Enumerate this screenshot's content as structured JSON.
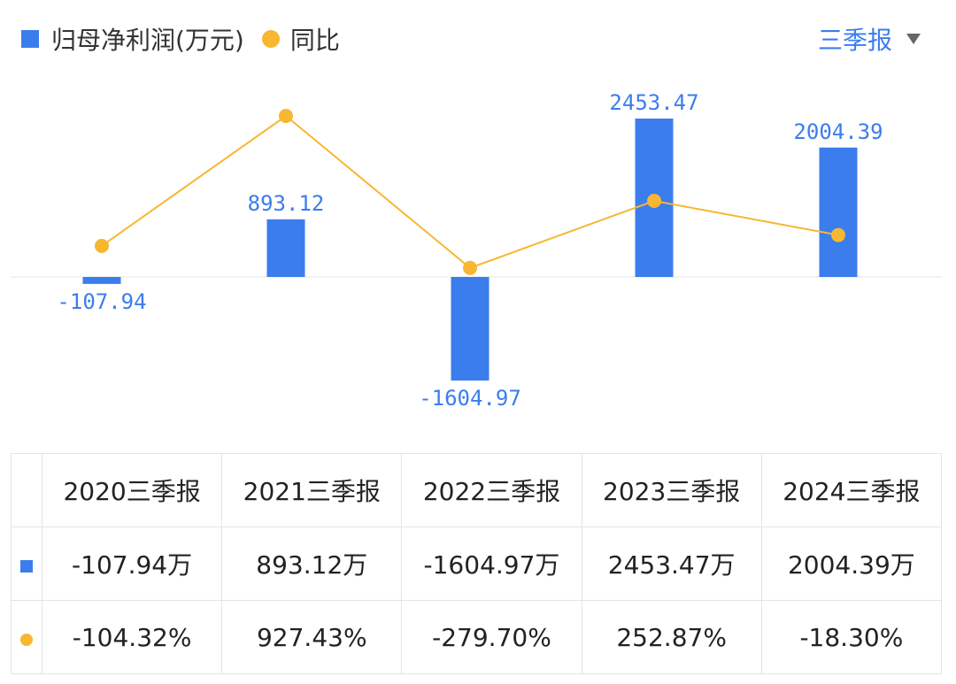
{
  "legend": {
    "bar_label": "归母净利润(万元)",
    "line_label": "同比"
  },
  "period_selector": {
    "label": "三季报"
  },
  "colors": {
    "bar": "#3b7ded",
    "line": "#f7b731",
    "label": "#3b7ded",
    "positive": "#e04b4b",
    "negative": "#2e9e6b"
  },
  "chart_data": {
    "type": "bar",
    "categories": [
      "2020三季报",
      "2021三季报",
      "2022三季报",
      "2023三季报",
      "2024三季报"
    ],
    "series": [
      {
        "name": "归母净利润(万元)",
        "type": "bar",
        "values": [
          -107.94,
          893.12,
          -1604.97,
          2453.47,
          2004.39
        ]
      },
      {
        "name": "同比",
        "type": "line",
        "values": [
          -104.32,
          927.43,
          -279.7,
          252.87,
          -18.3
        ],
        "unit": "%"
      }
    ],
    "data_labels": [
      "-107.94",
      "893.12",
      "-1604.97",
      "2453.47",
      "2004.39"
    ],
    "grid": false
  },
  "table": {
    "headers": [
      "2020三季报",
      "2021三季报",
      "2022三季报",
      "2023三季报",
      "2024三季报"
    ],
    "profit_row": [
      "-107.94万",
      "893.12万",
      "-1604.97万",
      "2453.47万",
      "2004.39万"
    ],
    "yoy_row": [
      "-104.32%",
      "927.43%",
      "-279.70%",
      "252.87%",
      "-18.30%"
    ]
  }
}
